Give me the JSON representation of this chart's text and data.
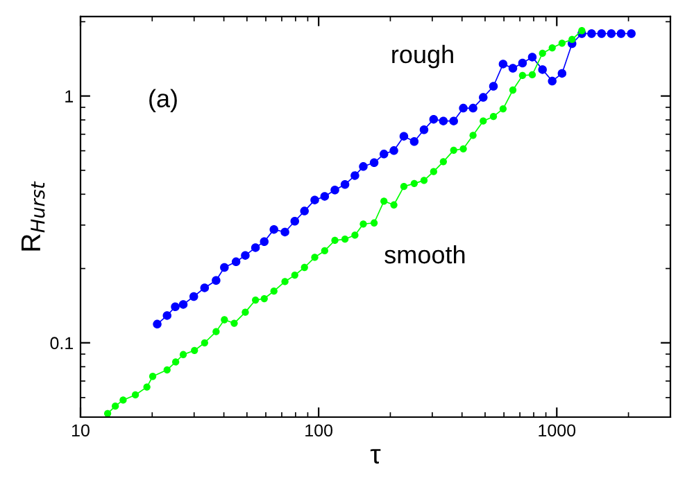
{
  "chart_data": {
    "type": "line",
    "xlabel": "τ",
    "ylabel": "R$_{Hurst}$",
    "annotations": [
      "(a)"
    ],
    "log": "xy",
    "xlim": [
      10,
      3000
    ],
    "ylim": [
      0.05,
      2.1
    ],
    "xticks": [
      10,
      100,
      1000
    ],
    "yticks": [
      0.1,
      1
    ],
    "marker": "circle",
    "line_style": "solid",
    "grid": false,
    "legend": false,
    "series": [
      {
        "name": "rough",
        "color": "#0000ff",
        "x": [
          21.0,
          23.1,
          25.0,
          27.0,
          29.9,
          33.2,
          37.1,
          40.2,
          45.0,
          49.2,
          54.3,
          59.1,
          64.9,
          72.2,
          79.4,
          87.2,
          96.3,
          106,
          117,
          129,
          142,
          154,
          171,
          188,
          207,
          228,
          252,
          277,
          304,
          334,
          369,
          405,
          445,
          491,
          542,
          595,
          654,
          718,
          789,
          871,
          957,
          1052,
          1159,
          1274,
          1400,
          1542,
          1694,
          1862,
          2056
        ],
        "values": [
          0.119,
          0.129,
          0.14,
          0.143,
          0.154,
          0.167,
          0.179,
          0.202,
          0.213,
          0.226,
          0.243,
          0.257,
          0.288,
          0.281,
          0.311,
          0.342,
          0.379,
          0.392,
          0.416,
          0.438,
          0.476,
          0.518,
          0.537,
          0.582,
          0.601,
          0.687,
          0.654,
          0.73,
          0.805,
          0.792,
          0.792,
          0.893,
          0.893,
          0.987,
          1.095,
          1.348,
          1.296,
          1.36,
          1.438,
          1.28,
          1.149,
          1.235,
          1.63,
          1.79,
          1.79,
          1.79,
          1.79,
          1.79,
          1.79
        ]
      },
      {
        "name": "smooth",
        "color": "#00ff00",
        "x": [
          13.0,
          14.0,
          15.1,
          17.0,
          19.0,
          20.1,
          23.1,
          25.1,
          27.0,
          30.1,
          33.2,
          37.1,
          40.2,
          44.2,
          49.2,
          54.3,
          59.1,
          64.9,
          72.2,
          79.4,
          87.2,
          96.3,
          106,
          117,
          129,
          142,
          154,
          171,
          188,
          207,
          228,
          252,
          277,
          304,
          334,
          369,
          405,
          445,
          491,
          542,
          595,
          654,
          718,
          789,
          871,
          957,
          1052,
          1159,
          1274
        ],
        "values": [
          0.0517,
          0.0554,
          0.0586,
          0.0615,
          0.0662,
          0.0731,
          0.0777,
          0.0836,
          0.0896,
          0.0931,
          0.1,
          0.111,
          0.124,
          0.12,
          0.133,
          0.149,
          0.151,
          0.162,
          0.177,
          0.188,
          0.202,
          0.222,
          0.236,
          0.26,
          0.263,
          0.273,
          0.303,
          0.306,
          0.375,
          0.362,
          0.43,
          0.442,
          0.455,
          0.494,
          0.542,
          0.603,
          0.611,
          0.693,
          0.792,
          0.826,
          0.887,
          1.057,
          1.211,
          1.219,
          1.489,
          1.567,
          1.637,
          1.695,
          1.84
        ]
      }
    ]
  }
}
